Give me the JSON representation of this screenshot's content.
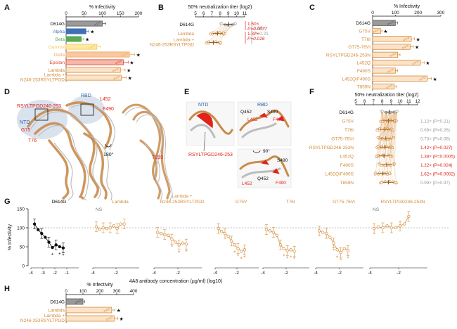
{
  "panel_letters": [
    "A",
    "B",
    "C",
    "D",
    "E",
    "F",
    "G",
    "H"
  ],
  "colors": {
    "grey": "#9a9a9a",
    "alpha": "#3f6fb5",
    "beta": "#5aa957",
    "gamma": "#f2c94c",
    "delta": "#f4a460",
    "epsilon": "#e03a2f",
    "lambda": "#d58b3a",
    "lambda_fill": "#fbe3c8",
    "red": "#e2231a",
    "blue": "#2d5fa8",
    "protein": "#c98b4b",
    "protein_grey": "#bdbdbd"
  },
  "chart_data": [
    {
      "id": "A",
      "type": "bar",
      "orientation": "horizontal",
      "title": "% Infectivity",
      "xlim": [
        0,
        200
      ],
      "xticks": [
        0,
        50,
        100,
        150,
        200
      ],
      "categories": [
        "D614G",
        "Alpha",
        "Beta",
        "Gamma",
        "Delta",
        "Epsilon",
        "Lambda",
        "Lambda + N246-253RSYLTPGD"
      ],
      "values": [
        100,
        55,
        42,
        85,
        175,
        158,
        150,
        153
      ],
      "significant": [
        false,
        true,
        true,
        false,
        true,
        true,
        true,
        true
      ],
      "sig_mark": "★"
    },
    {
      "id": "B",
      "type": "scatter",
      "title": "50% neutralization titer (log2)",
      "xlim": [
        5,
        11
      ],
      "xticks": [
        5,
        6,
        7,
        8,
        9,
        10,
        11
      ],
      "categories": [
        "D614G",
        "Lambda",
        "Lambda + N246-253RSYLTPGD"
      ],
      "means": [
        9.0,
        7.7,
        7.2
      ],
      "annotations": [
        {
          "text": "1.08×",
          "color": "grey"
        },
        {
          "text": "P=0.21",
          "color": "grey"
        },
        {
          "text": "1.50×",
          "color": "red"
        },
        {
          "text": "P=0.0077",
          "color": "red"
        },
        {
          "text": "1.37×",
          "color": "red"
        },
        {
          "text": "P=0.016",
          "color": "red"
        }
      ]
    },
    {
      "id": "E",
      "type": "bar",
      "orientation": "horizontal",
      "title": "% Infectivity",
      "xlim": [
        0,
        300
      ],
      "xticks": [
        0,
        100,
        200,
        300
      ],
      "categories": [
        "D614G",
        "G75V",
        "T76I",
        "GT75-76VI",
        "RSYLTPGD246-253N",
        "L452Q",
        "F490S",
        "L452Q/F490S",
        "T859N"
      ],
      "values": [
        100,
        35,
        170,
        165,
        110,
        210,
        100,
        240,
        95
      ],
      "significant": [
        false,
        true,
        true,
        true,
        false,
        true,
        false,
        true,
        false
      ],
      "sig_mark": "★"
    },
    {
      "id": "F",
      "type": "scatter",
      "title": "50% neutralization titer (log2)",
      "xlim": [
        5,
        12
      ],
      "xticks": [
        5,
        6,
        7,
        8,
        9,
        10,
        11,
        12
      ],
      "categories": [
        "D614G",
        "G75V",
        "T76I",
        "GT75-76VI",
        "RSYLTPGD246-253N",
        "L452Q",
        "F490S",
        "L452Q/F490S",
        "T859N"
      ],
      "means": [
        8.8,
        8.7,
        8.3,
        8.4,
        8.3,
        8.2,
        8.5,
        8.0,
        8.7
      ],
      "annotations": [
        {
          "text": "1.12× (P=0.21)",
          "color": "grey"
        },
        {
          "text": "0.69× (P=0.26)",
          "color": "grey"
        },
        {
          "text": "0.73× (P=0.08)",
          "color": "grey"
        },
        {
          "text": "1.42× (P=0.027)",
          "color": "red"
        },
        {
          "text": "1.38× (P=0.0005)",
          "color": "red"
        },
        {
          "text": "1.22× (P=0.024)",
          "color": "red"
        },
        {
          "text": "1.62× (P=0.0002)",
          "color": "red"
        },
        {
          "text": "0.99× (P=0.97)",
          "color": "grey"
        }
      ]
    },
    {
      "id": "G",
      "type": "line",
      "ylabel": "% Infectivity",
      "xlabel": "4A8 antibody concentration (µg/ml) (log10)",
      "ylim": [
        0,
        150
      ],
      "yticks": [
        0,
        50,
        100,
        150
      ],
      "xlim": [
        -4,
        0
      ],
      "xticks": [
        -4,
        -3,
        -2,
        -1
      ],
      "reference_line": 100,
      "subplot_xticks": [
        -4,
        -2
      ],
      "x": [
        -3.7,
        -3.4,
        -3.1,
        -2.8,
        -2.5,
        -2.2,
        -1.9,
        -1.6,
        -1.3
      ],
      "series": [
        {
          "name": "D614G",
          "color": "black",
          "values": [
            110,
            95,
            85,
            75,
            62,
            48,
            55,
            50,
            47
          ],
          "stars": [
            5,
            7,
            8
          ],
          "ns": false
        },
        {
          "name": "Lambda",
          "color": "lambda",
          "values": [
            103,
            96,
            100,
            98,
            100,
            105,
            98,
            110,
            110
          ],
          "stars": [],
          "ns": true
        },
        {
          "name": "Lambda + N246-253RSYLTPGD",
          "color": "lambda",
          "values": [
            88,
            85,
            82,
            80,
            70,
            62,
            55,
            60,
            57
          ],
          "stars": [
            4,
            6,
            8
          ],
          "ns": false
        },
        {
          "name": "G75V",
          "color": "lambda",
          "values": [
            98,
            90,
            85,
            78,
            65,
            55,
            45,
            38,
            42
          ],
          "stars": [
            5,
            6,
            7,
            8
          ],
          "ns": false
        },
        {
          "name": "T76I",
          "color": "lambda",
          "values": [
            95,
            92,
            88,
            80,
            55,
            45,
            40,
            42,
            38
          ],
          "stars": [
            5,
            6,
            7,
            8
          ],
          "ns": false
        },
        {
          "name": "GT75-76VI",
          "color": "lambda",
          "values": [
            92,
            88,
            85,
            75,
            60,
            42,
            35,
            45,
            40
          ],
          "stars": [
            4,
            5,
            6,
            8
          ],
          "ns": false
        },
        {
          "name": "RSYLTPGD246-253N",
          "color": "lambda",
          "values": [
            98,
            102,
            100,
            105,
            100,
            100,
            105,
            110,
            130
          ],
          "stars": [],
          "ns": true
        }
      ]
    },
    {
      "id": "H",
      "type": "bar",
      "orientation": "horizontal",
      "title": "% Infectivity",
      "xlim": [
        0,
        400
      ],
      "xticks": [
        0,
        100,
        200,
        300,
        400
      ],
      "categories": [
        "D614G",
        "Lambda",
        "Lambda + N246-253RSYLTPGD"
      ],
      "values": [
        100,
        270,
        285
      ],
      "significant": [
        false,
        true,
        true
      ],
      "sig_mark": "★"
    }
  ],
  "panel_C": {
    "labels": [
      "RBD",
      "L452",
      "F490",
      "RSYLTPGD246-253",
      "NTD",
      "G75",
      "T76",
      "T859"
    ],
    "rotation": "180°"
  },
  "panel_D": {
    "top_left": [
      "NTD",
      "RSYLTPGD246-253"
    ],
    "top_right": [
      "RBD",
      "Q452",
      "S490",
      "L452",
      "F490"
    ],
    "bottom": [
      "S490",
      "L452",
      "Q452",
      "F490"
    ],
    "rotation": "90°"
  }
}
